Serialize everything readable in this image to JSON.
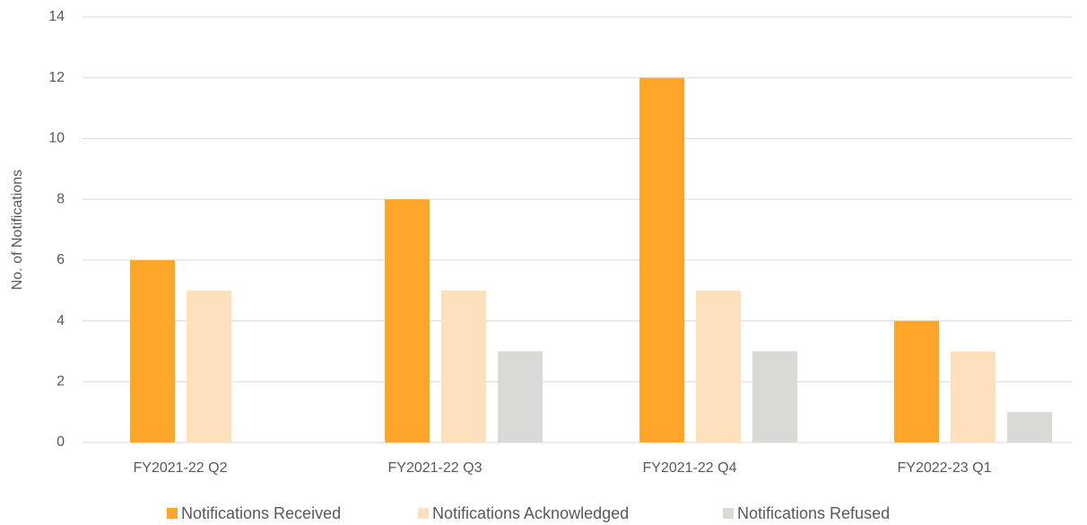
{
  "chart_data": {
    "type": "bar",
    "y_label": "No. of Notifications",
    "categories": [
      "FY2021-22 Q2",
      "FY2021-22 Q3",
      "FY2021-22 Q4",
      "FY2022-23 Q1"
    ],
    "series": [
      {
        "name": "Notifications Received",
        "color": "#ffa62b",
        "values": [
          6,
          8,
          12,
          4
        ]
      },
      {
        "name": "Notifications Acknowledged",
        "color": "#fde1bc",
        "values": [
          5,
          5,
          5,
          3
        ]
      },
      {
        "name": "Notifications Refused",
        "color": "#d9d9d6",
        "values": [
          0,
          3,
          3,
          1
        ]
      }
    ],
    "ylim": [
      0,
      14
    ],
    "yticks": [
      0,
      2,
      4,
      6,
      8,
      10,
      12,
      14
    ],
    "grid": true,
    "legend": "bottom"
  }
}
